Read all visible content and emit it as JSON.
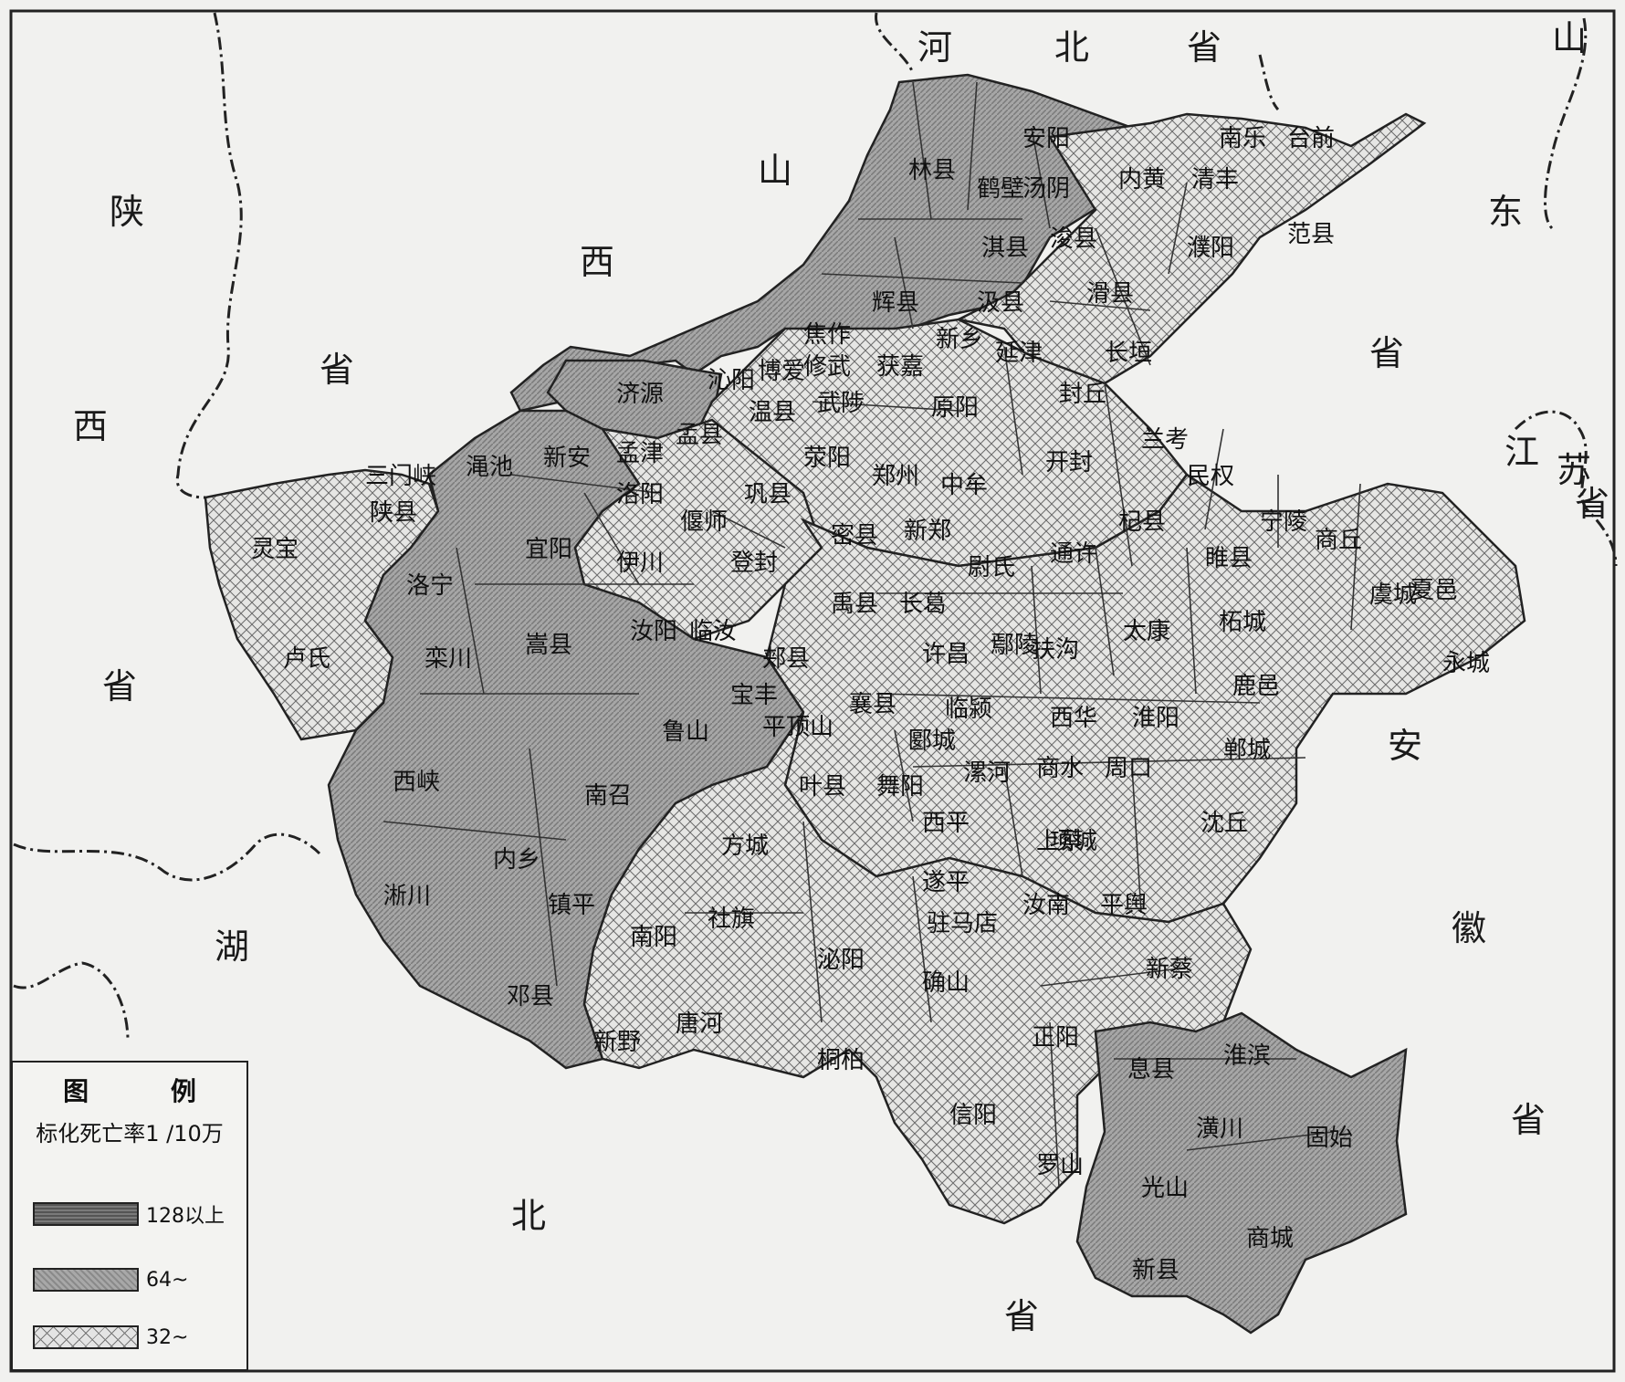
{
  "map": {
    "provinces": {
      "hebei": [
        "河",
        "北",
        "省"
      ],
      "shandong": [
        "山",
        "东",
        "省"
      ],
      "shanxi": [
        "山",
        "西",
        "省"
      ],
      "shaanxi": [
        "陕",
        "西",
        "省"
      ],
      "jiangsu": [
        "江",
        "苏",
        "省"
      ],
      "anhui": [
        "安",
        "徽",
        "省"
      ],
      "hubei": [
        "湖",
        "北",
        "省"
      ]
    },
    "counties": [
      {
        "name": "安阳",
        "rate_class": "64~"
      },
      {
        "name": "林县",
        "rate_class": "64~"
      },
      {
        "name": "鹤壁",
        "rate_class": "64~"
      },
      {
        "name": "汤阴",
        "rate_class": "64~"
      },
      {
        "name": "内黄",
        "rate_class": "32~"
      },
      {
        "name": "清丰",
        "rate_class": "32~"
      },
      {
        "name": "南乐",
        "rate_class": "32~"
      },
      {
        "name": "台前",
        "rate_class": "32~"
      },
      {
        "name": "淇县",
        "rate_class": "64~"
      },
      {
        "name": "浚县",
        "rate_class": "64~"
      },
      {
        "name": "濮阳",
        "rate_class": "32~"
      },
      {
        "name": "范县",
        "rate_class": "32~"
      },
      {
        "name": "辉县",
        "rate_class": "64~"
      },
      {
        "name": "汲县",
        "rate_class": "64~"
      },
      {
        "name": "滑县",
        "rate_class": "32~"
      },
      {
        "name": "焦作",
        "rate_class": "64~"
      },
      {
        "name": "新乡",
        "rate_class": "32~"
      },
      {
        "name": "延津",
        "rate_class": "32~"
      },
      {
        "name": "长垣",
        "rate_class": "32~"
      },
      {
        "name": "获嘉",
        "rate_class": "32~"
      },
      {
        "name": "修武",
        "rate_class": "64~"
      },
      {
        "name": "博爱",
        "rate_class": "64~"
      },
      {
        "name": "沁阳",
        "rate_class": "64~"
      },
      {
        "name": "济源",
        "rate_class": "64~"
      },
      {
        "name": "武陟",
        "rate_class": "32~"
      },
      {
        "name": "原阳",
        "rate_class": "32~"
      },
      {
        "name": "封丘",
        "rate_class": "32~"
      },
      {
        "name": "孟县",
        "rate_class": "64~"
      },
      {
        "name": "温县",
        "rate_class": "64~"
      },
      {
        "name": "兰考",
        "rate_class": "32~"
      },
      {
        "name": "渑池",
        "rate_class": "64~"
      },
      {
        "name": "新安",
        "rate_class": "64~"
      },
      {
        "name": "孟津",
        "rate_class": "32~"
      },
      {
        "name": "荥阳",
        "rate_class": "32~"
      },
      {
        "name": "郑州",
        "rate_class": "32~"
      },
      {
        "name": "中牟",
        "rate_class": "32~"
      },
      {
        "name": "开封",
        "rate_class": "32~"
      },
      {
        "name": "民权",
        "rate_class": "32~"
      },
      {
        "name": "三门峡",
        "rate_class": "32~"
      },
      {
        "name": "陕县",
        "rate_class": "32~"
      },
      {
        "name": "洛阳",
        "rate_class": "32~"
      },
      {
        "name": "偃师",
        "rate_class": "32~"
      },
      {
        "name": "巩县",
        "rate_class": "32~"
      },
      {
        "name": "灵宝",
        "rate_class": "32~"
      },
      {
        "name": "宜阳",
        "rate_class": "64~"
      },
      {
        "name": "伊川",
        "rate_class": "32~"
      },
      {
        "name": "登封",
        "rate_class": "32~"
      },
      {
        "name": "密县",
        "rate_class": "32~"
      },
      {
        "name": "新郑",
        "rate_class": "32~"
      },
      {
        "name": "尉氏",
        "rate_class": "32~"
      },
      {
        "name": "通许",
        "rate_class": "32~"
      },
      {
        "name": "杞县",
        "rate_class": "32~"
      },
      {
        "name": "睢县",
        "rate_class": "32~"
      },
      {
        "name": "宁陵",
        "rate_class": "32~"
      },
      {
        "name": "商丘",
        "rate_class": "32~"
      },
      {
        "name": "虞城",
        "rate_class": "32~"
      },
      {
        "name": "夏邑",
        "rate_class": "32~"
      },
      {
        "name": "洛宁",
        "rate_class": "64~"
      },
      {
        "name": "汝阳",
        "rate_class": "32~"
      },
      {
        "name": "临汝",
        "rate_class": "32~"
      },
      {
        "name": "禹县",
        "rate_class": "32~"
      },
      {
        "name": "长葛",
        "rate_class": "32~"
      },
      {
        "name": "鄢陵",
        "rate_class": "32~"
      },
      {
        "name": "扶沟",
        "rate_class": "32~"
      },
      {
        "name": "太康",
        "rate_class": "32~"
      },
      {
        "name": "柘城",
        "rate_class": "32~"
      },
      {
        "name": "永城",
        "rate_class": "32~"
      },
      {
        "name": "卢氏",
        "rate_class": "32~"
      },
      {
        "name": "栾川",
        "rate_class": "64~"
      },
      {
        "name": "嵩县",
        "rate_class": "64~"
      },
      {
        "name": "郏县",
        "rate_class": "32~"
      },
      {
        "name": "许昌",
        "rate_class": "32~"
      },
      {
        "name": "鹿邑",
        "rate_class": "32~"
      },
      {
        "name": "宝丰",
        "rate_class": "32~"
      },
      {
        "name": "襄县",
        "rate_class": "32~"
      },
      {
        "name": "临颍",
        "rate_class": "32~"
      },
      {
        "name": "西华",
        "rate_class": "32~"
      },
      {
        "name": "淮阳",
        "rate_class": "32~"
      },
      {
        "name": "鲁山",
        "rate_class": "64~"
      },
      {
        "name": "平顶山",
        "rate_class": "64~"
      },
      {
        "name": "郾城",
        "rate_class": "32~"
      },
      {
        "name": "郸城",
        "rate_class": "32~"
      },
      {
        "name": "西峡",
        "rate_class": "64~"
      },
      {
        "name": "叶县",
        "rate_class": "32~"
      },
      {
        "name": "舞阳",
        "rate_class": "32~"
      },
      {
        "name": "漯河",
        "rate_class": "32~"
      },
      {
        "name": "商水",
        "rate_class": "32~"
      },
      {
        "name": "周口",
        "rate_class": "32~"
      },
      {
        "name": "南召",
        "rate_class": "64~"
      },
      {
        "name": "西平",
        "rate_class": "32~"
      },
      {
        "name": "项城",
        "rate_class": "32~"
      },
      {
        "name": "沈丘",
        "rate_class": "32~"
      },
      {
        "name": "方城",
        "rate_class": "32~"
      },
      {
        "name": "上蔡",
        "rate_class": "32~"
      },
      {
        "name": "内乡",
        "rate_class": "64~"
      },
      {
        "name": "淅川",
        "rate_class": "64~"
      },
      {
        "name": "镇平",
        "rate_class": "32~"
      },
      {
        "name": "遂平",
        "rate_class": "32~"
      },
      {
        "name": "平舆",
        "rate_class": "32~"
      },
      {
        "name": "南阳",
        "rate_class": "32~"
      },
      {
        "name": "社旗",
        "rate_class": "32~"
      },
      {
        "name": "驻马店",
        "rate_class": "32~"
      },
      {
        "name": "汝南",
        "rate_class": "32~"
      },
      {
        "name": "新蔡",
        "rate_class": "32~"
      },
      {
        "name": "泌阳",
        "rate_class": "32~"
      },
      {
        "name": "确山",
        "rate_class": "32~"
      },
      {
        "name": "邓县",
        "rate_class": "64~"
      },
      {
        "name": "唐河",
        "rate_class": "32~"
      },
      {
        "name": "正阳",
        "rate_class": "32~"
      },
      {
        "name": "新野",
        "rate_class": "32~"
      },
      {
        "name": "桐柏",
        "rate_class": "32~"
      },
      {
        "name": "息县",
        "rate_class": "64~"
      },
      {
        "name": "淮滨",
        "rate_class": "32~"
      },
      {
        "name": "信阳",
        "rate_class": "32~"
      },
      {
        "name": "潢川",
        "rate_class": "64~"
      },
      {
        "name": "固始",
        "rate_class": "64~"
      },
      {
        "name": "罗山",
        "rate_class": "32~"
      },
      {
        "name": "光山",
        "rate_class": "64~"
      },
      {
        "name": "商城",
        "rate_class": "64~"
      },
      {
        "name": "新县",
        "rate_class": "64~"
      }
    ]
  },
  "legend": {
    "title": "图 例",
    "subtitle": "标化死亡率1 /10万",
    "items": [
      {
        "label": "128以上",
        "class": "128以上"
      },
      {
        "label": "64~",
        "class": "64~"
      },
      {
        "label": "32~",
        "class": "32~"
      }
    ]
  },
  "colors": {
    "background": "#f1f1ef",
    "class_128": "#666666",
    "class_64": "#9a9a9a",
    "class_32": "#e2e2e2",
    "boundary": "#222222"
  }
}
